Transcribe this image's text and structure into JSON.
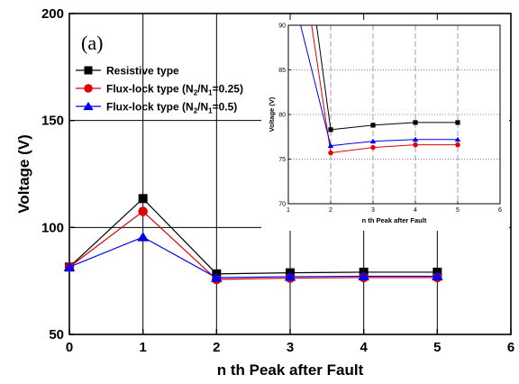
{
  "panel_label": "(a)",
  "colors": {
    "resistive": "#000000",
    "flux_025": "#e00000",
    "flux_05": "#0000ee"
  },
  "chart_data": [
    {
      "type": "line",
      "xlabel": "n th Peak after Fault",
      "ylabel": "Voltage (V)",
      "xlim": [
        0,
        6
      ],
      "ylim": [
        50,
        200
      ],
      "x_ticks": [
        0,
        1,
        2,
        3,
        4,
        5,
        6
      ],
      "y_ticks": [
        50,
        100,
        150,
        200
      ],
      "x": [
        0,
        1,
        2,
        3,
        4,
        5
      ],
      "grid": "major lines at x = 1..5 and y = 100, 150",
      "legend_position": "upper-left",
      "series": [
        {
          "name": "Resistive type",
          "marker": "square",
          "color": "#000000",
          "values": [
            81.5,
            113.5,
            78.3,
            78.8,
            79.1,
            79.1
          ]
        },
        {
          "name_parts": [
            "Flux-lock type (N",
            "2",
            "/N",
            "1",
            "=0.25)"
          ],
          "marker": "circle",
          "color": "#e00000",
          "values": [
            81.5,
            107.5,
            75.7,
            76.3,
            76.6,
            76.6
          ]
        },
        {
          "name_parts": [
            "Flux-lock type (N",
            "2",
            "/N",
            "1",
            "=0.5)"
          ],
          "marker": "triangle",
          "color": "#0000ee",
          "values": [
            81.5,
            95.5,
            76.5,
            77.0,
            77.2,
            77.2
          ]
        }
      ]
    },
    {
      "type": "line",
      "inset": true,
      "xlabel": "n th Peak after Fault",
      "ylabel": "Voltage (V)",
      "xlim": [
        1,
        6
      ],
      "ylim": [
        70,
        90
      ],
      "x_ticks": [
        1,
        2,
        3,
        4,
        5,
        6
      ],
      "y_ticks": [
        70,
        75,
        80,
        85,
        90
      ],
      "x": [
        2,
        3,
        4,
        5
      ],
      "grid": "dashed lines at x = 2..5, dotted lines at y = 75, 80, 85",
      "series": [
        {
          "marker": "square",
          "color": "#000000",
          "values": [
            78.3,
            78.8,
            79.1,
            79.1
          ]
        },
        {
          "marker": "circle",
          "color": "#e00000",
          "values": [
            75.7,
            76.3,
            76.6,
            76.6
          ]
        },
        {
          "marker": "triangle",
          "color": "#0000ee",
          "values": [
            76.5,
            77.0,
            77.2,
            77.2
          ]
        }
      ]
    }
  ]
}
